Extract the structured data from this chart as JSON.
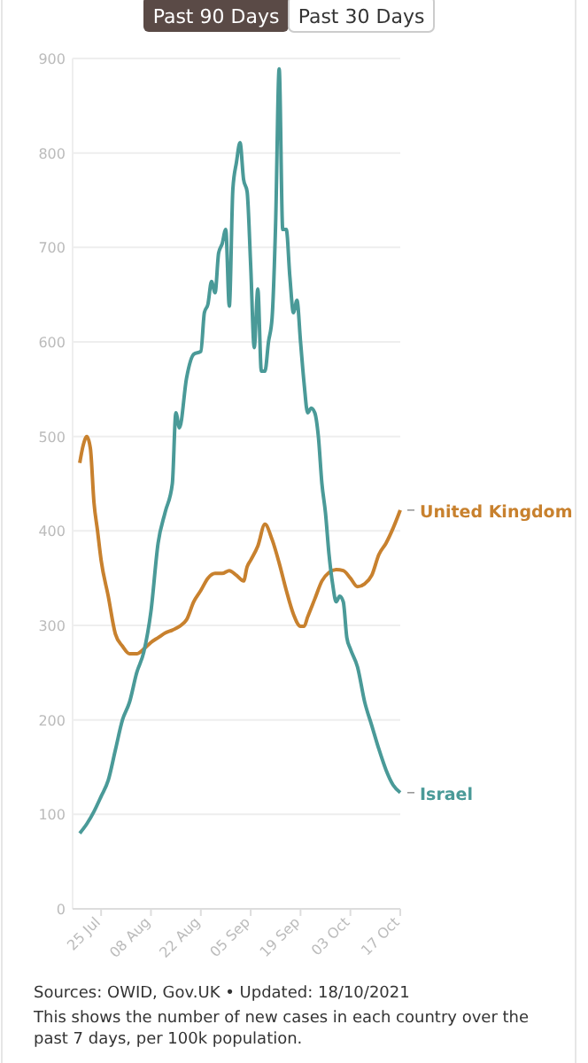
{
  "chart_data": {
    "type": "line",
    "xlim": [
      "2021-07-17",
      "2021-10-17"
    ],
    "ylim": [
      0,
      900
    ],
    "yticks": [
      0,
      100,
      200,
      300,
      400,
      500,
      600,
      700,
      800,
      900
    ],
    "xticks": [
      {
        "value": "2021-07-25",
        "label": "25 Jul"
      },
      {
        "value": "2021-08-08",
        "label": "08 Aug"
      },
      {
        "value": "2021-08-22",
        "label": "22 Aug"
      },
      {
        "value": "2021-09-05",
        "label": "05 Sep"
      },
      {
        "value": "2021-09-19",
        "label": "19 Sep"
      },
      {
        "value": "2021-10-03",
        "label": "03 Oct"
      },
      {
        "value": "2021-10-17",
        "label": "17 Oct"
      }
    ],
    "grid": "y",
    "marker": "none",
    "line_style": "solid",
    "annotations": [
      "Past 90 Days",
      "Past 30 Days",
      "Sources: OWID, Gov.UK • Updated: 18/10/2021",
      "This shows the number of new cases in each country over the past 7 days, per 100k population."
    ],
    "series": [
      {
        "name": "United Kingdom",
        "color": "#c8812e",
        "x": [
          "2021-07-19",
          "2021-07-20",
          "2021-07-21",
          "2021-07-22",
          "2021-07-23",
          "2021-07-24",
          "2021-07-25",
          "2021-07-27",
          "2021-07-29",
          "2021-07-31",
          "2021-08-02",
          "2021-08-04",
          "2021-08-06",
          "2021-08-08",
          "2021-08-10",
          "2021-08-12",
          "2021-08-14",
          "2021-08-16",
          "2021-08-18",
          "2021-08-20",
          "2021-08-22",
          "2021-08-24",
          "2021-08-26",
          "2021-08-28",
          "2021-08-30",
          "2021-09-01",
          "2021-09-03",
          "2021-09-04",
          "2021-09-05",
          "2021-09-07",
          "2021-09-09",
          "2021-09-11",
          "2021-09-13",
          "2021-09-15",
          "2021-09-17",
          "2021-09-19",
          "2021-09-20",
          "2021-09-21",
          "2021-09-23",
          "2021-09-25",
          "2021-09-27",
          "2021-09-29",
          "2021-10-01",
          "2021-10-03",
          "2021-10-05",
          "2021-10-07",
          "2021-10-09",
          "2021-10-11",
          "2021-10-13",
          "2021-10-15",
          "2021-10-17"
        ],
        "values": [
          472,
          491,
          500,
          487,
          430,
          400,
          369,
          331,
          291,
          278,
          270,
          270,
          275,
          282,
          287,
          292,
          295,
          299,
          306,
          325,
          337,
          350,
          355,
          355,
          358,
          353,
          347,
          362,
          369,
          384,
          407,
          391,
          366,
          337,
          312,
          299,
          299,
          309,
          328,
          347,
          356,
          359,
          358,
          350,
          341,
          344,
          353,
          375,
          387,
          403,
          422
        ]
      },
      {
        "name": "Israel",
        "color": "#4a9a98",
        "x": [
          "2021-07-19",
          "2021-07-21",
          "2021-07-23",
          "2021-07-25",
          "2021-07-27",
          "2021-07-29",
          "2021-07-31",
          "2021-08-02",
          "2021-08-04",
          "2021-08-06",
          "2021-08-08",
          "2021-08-10",
          "2021-08-12",
          "2021-08-14",
          "2021-08-15",
          "2021-08-16",
          "2021-08-18",
          "2021-08-20",
          "2021-08-22",
          "2021-08-23",
          "2021-08-24",
          "2021-08-25",
          "2021-08-26",
          "2021-08-27",
          "2021-08-28",
          "2021-08-29",
          "2021-08-30",
          "2021-08-31",
          "2021-09-01",
          "2021-09-02",
          "2021-09-03",
          "2021-09-04",
          "2021-09-05",
          "2021-09-06",
          "2021-09-07",
          "2021-09-08",
          "2021-09-09",
          "2021-09-10",
          "2021-09-11",
          "2021-09-12",
          "2021-09-13",
          "2021-09-14",
          "2021-09-15",
          "2021-09-16",
          "2021-09-17",
          "2021-09-18",
          "2021-09-19",
          "2021-09-20",
          "2021-09-21",
          "2021-09-22",
          "2021-09-23",
          "2021-09-24",
          "2021-09-25",
          "2021-09-26",
          "2021-09-27",
          "2021-09-28",
          "2021-09-29",
          "2021-09-30",
          "2021-10-01",
          "2021-10-02",
          "2021-10-03",
          "2021-10-05",
          "2021-10-07",
          "2021-10-09",
          "2021-10-11",
          "2021-10-13",
          "2021-10-15",
          "2021-10-17"
        ],
        "values": [
          80,
          90,
          103,
          119,
          136,
          168,
          200,
          219,
          250,
          272,
          315,
          387,
          420,
          450,
          525,
          509,
          562,
          587,
          590,
          631,
          640,
          664,
          652,
          694,
          704,
          719,
          638,
          762,
          790,
          811,
          772,
          759,
          681,
          594,
          656,
          569,
          569,
          600,
          625,
          725,
          889,
          719,
          719,
          669,
          631,
          644,
          600,
          556,
          525,
          530,
          525,
          500,
          450,
          419,
          375,
          344,
          325,
          331,
          325,
          287,
          275,
          256,
          219,
          194,
          169,
          147,
          131,
          123
        ]
      }
    ]
  }
}
